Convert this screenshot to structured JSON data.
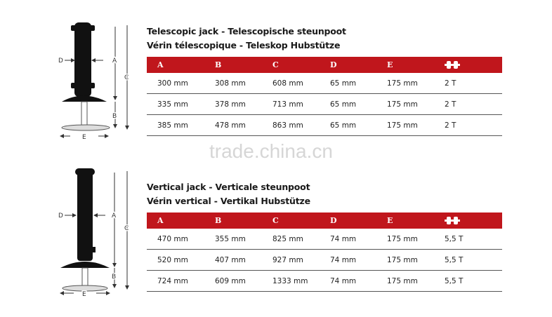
{
  "watermark": "trade.china.cn",
  "accent": "#c0161c",
  "diagram_labels": {
    "a": "A",
    "b": "B",
    "c": "C",
    "d": "D",
    "e": "E"
  },
  "sections": [
    {
      "title1": "Telescopic jack  -  Telescopische steunpoot",
      "title2": "Vérin télescopique  -  Teleskop Hubstütze",
      "headers": [
        "A",
        "B",
        "C",
        "D",
        "E"
      ],
      "weight_icon": "weight-icon",
      "rows": [
        [
          "300 mm",
          "308 mm",
          "608 mm",
          "65 mm",
          "175 mm",
          "2 T"
        ],
        [
          "335 mm",
          "378 mm",
          "713 mm",
          "65 mm",
          "175 mm",
          "2 T"
        ],
        [
          "385 mm",
          "478 mm",
          "863 mm",
          "65 mm",
          "175 mm",
          "2 T"
        ]
      ]
    },
    {
      "title1": "Vertical jack  -  Verticale steunpoot",
      "title2": "Vérin vertical  -  Vertikal Hubstütze",
      "headers": [
        "A",
        "B",
        "C",
        "D",
        "E"
      ],
      "weight_icon": "weight-icon",
      "rows": [
        [
          "470 mm",
          "355 mm",
          "825 mm",
          "74 mm",
          "175 mm",
          "5,5 T"
        ],
        [
          "520 mm",
          "407 mm",
          "927 mm",
          "74 mm",
          "175 mm",
          "5,5 T"
        ],
        [
          "724 mm",
          "609 mm",
          "1333 mm",
          "74 mm",
          "175 mm",
          "5,5 T"
        ]
      ]
    }
  ]
}
